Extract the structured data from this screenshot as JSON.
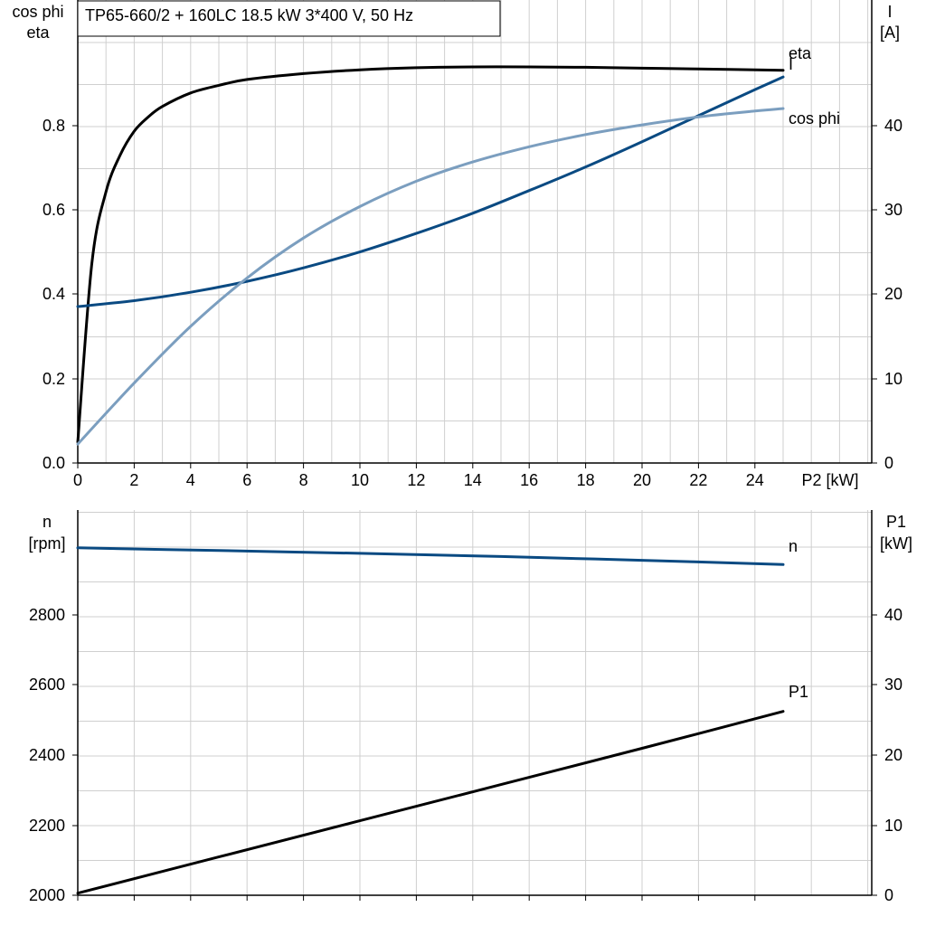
{
  "title": "TP65-660/2 + 160LC   18.5 kW   3*400 V, 50 Hz",
  "colors": {
    "eta": "#000000",
    "I": "#0a4a82",
    "cos_phi": "#7b9ebf",
    "n": "#0a4a82",
    "P1": "#000000"
  },
  "chart_data": [
    {
      "type": "line",
      "xlabel": "P2 [kW]",
      "xticks": [
        0,
        2,
        4,
        6,
        8,
        10,
        12,
        14,
        16,
        18,
        20,
        22,
        24
      ],
      "xlim": [
        0,
        28
      ],
      "left_axis_label": [
        "cos phi",
        "eta"
      ],
      "left_ylim": [
        0,
        1.1
      ],
      "left_ticks": [
        "0.0",
        "0.2",
        "0.4",
        "0.6",
        "0.8"
      ],
      "right_axis_label": [
        "I",
        "[A]"
      ],
      "right_ylim": [
        0,
        55
      ],
      "right_ticks": [
        "0",
        "10",
        "20",
        "30",
        "40"
      ],
      "grid": true,
      "series": [
        {
          "name": "eta",
          "axis": "left",
          "color": "#000000",
          "x": [
            0,
            0.5,
            1,
            1.5,
            2,
            2.5,
            3,
            4,
            5,
            6,
            8,
            10,
            12,
            14,
            16,
            18,
            20,
            22,
            25
          ],
          "y": [
            0.05,
            0.475,
            0.645,
            0.732,
            0.789,
            0.823,
            0.848,
            0.88,
            0.898,
            0.912,
            0.926,
            0.935,
            0.94,
            0.942,
            0.942,
            0.941,
            0.939,
            0.937,
            0.934
          ]
        },
        {
          "name": "I",
          "axis": "right",
          "color": "#0a4a82",
          "x": [
            0,
            2,
            4,
            6,
            8,
            10,
            12,
            14,
            16,
            18,
            20,
            22,
            24,
            25
          ],
          "y": [
            18.6,
            19.3,
            20.3,
            21.6,
            23.2,
            25.1,
            27.3,
            29.7,
            32.4,
            35.2,
            38.2,
            41.3,
            44.4,
            45.9
          ]
        },
        {
          "name": "cos phi",
          "axis": "left",
          "color": "#7b9ebf",
          "x": [
            0,
            2,
            4,
            6,
            8,
            10,
            12,
            14,
            16,
            18,
            20,
            22,
            24,
            25
          ],
          "y": [
            0.045,
            0.19,
            0.325,
            0.44,
            0.535,
            0.61,
            0.67,
            0.716,
            0.752,
            0.781,
            0.804,
            0.823,
            0.837,
            0.843
          ]
        }
      ]
    },
    {
      "type": "line",
      "xlim": [
        0,
        28
      ],
      "left_axis_label": [
        "n",
        "[rpm]"
      ],
      "left_ylim": [
        2000,
        3100
      ],
      "left_ticks": [
        "2000",
        "2200",
        "2400",
        "2600",
        "2800"
      ],
      "right_axis_label": [
        "P1",
        "[kW]"
      ],
      "right_ylim": [
        0,
        55
      ],
      "right_ticks": [
        "0",
        "10",
        "20",
        "30",
        "40"
      ],
      "grid": true,
      "series": [
        {
          "name": "n",
          "axis": "left",
          "color": "#0a4a82",
          "x": [
            0,
            5,
            10,
            15,
            20,
            25
          ],
          "y": [
            2998,
            2990,
            2982,
            2973,
            2962,
            2950
          ]
        },
        {
          "name": "P1",
          "axis": "right",
          "color": "#000000",
          "x": [
            0,
            5,
            10,
            15,
            20,
            25
          ],
          "y": [
            0.3,
            5.5,
            10.7,
            15.9,
            21.1,
            26.4
          ]
        }
      ]
    }
  ]
}
